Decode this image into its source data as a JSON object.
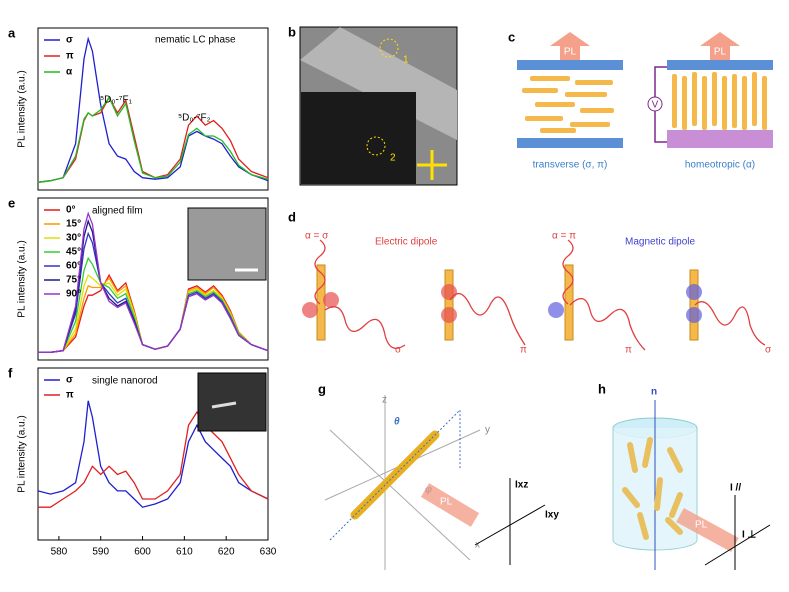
{
  "chart_data": [
    {
      "type": "line",
      "panel": "a",
      "ylabel": "PL intensity (a.u.)",
      "annotations": [
        "nematic LC phase",
        "⁵D₀-⁷F₁",
        "⁵D₀-⁷F₂"
      ],
      "xlim": [
        575,
        630
      ],
      "ylim": [
        0,
        1.05
      ],
      "x": [
        575,
        578,
        581,
        584,
        586,
        587,
        588,
        590,
        592,
        594,
        596,
        598,
        600,
        603,
        606,
        609,
        611,
        613,
        615,
        617,
        619,
        621,
        623,
        626,
        630
      ],
      "series": [
        {
          "name": "σ",
          "color": "#1f1fd0",
          "values": [
            0.05,
            0.06,
            0.08,
            0.3,
            0.85,
            0.98,
            0.9,
            0.55,
            0.3,
            0.22,
            0.2,
            0.12,
            0.08,
            0.07,
            0.08,
            0.15,
            0.35,
            0.38,
            0.35,
            0.33,
            0.3,
            0.22,
            0.15,
            0.1,
            0.06
          ]
        },
        {
          "name": "π",
          "color": "#e02020",
          "values": [
            0.05,
            0.06,
            0.08,
            0.2,
            0.45,
            0.5,
            0.48,
            0.5,
            0.6,
            0.5,
            0.58,
            0.35,
            0.12,
            0.08,
            0.1,
            0.2,
            0.42,
            0.48,
            0.42,
            0.45,
            0.4,
            0.32,
            0.2,
            0.12,
            0.08
          ]
        },
        {
          "name": "α",
          "color": "#22bb22",
          "values": [
            0.05,
            0.06,
            0.08,
            0.22,
            0.46,
            0.5,
            0.48,
            0.52,
            0.6,
            0.48,
            0.56,
            0.32,
            0.11,
            0.08,
            0.09,
            0.18,
            0.36,
            0.4,
            0.35,
            0.35,
            0.32,
            0.25,
            0.16,
            0.1,
            0.07
          ]
        }
      ]
    },
    {
      "type": "line",
      "panel": "e",
      "ylabel": "PL intensity (a.u.)",
      "annotations": [
        "aligned film"
      ],
      "xlim": [
        575,
        630
      ],
      "ylim": [
        0,
        1.05
      ],
      "x": [
        575,
        578,
        581,
        584,
        586,
        587,
        588,
        590,
        592,
        594,
        596,
        598,
        600,
        603,
        606,
        609,
        611,
        613,
        615,
        617,
        619,
        621,
        623,
        626,
        630
      ],
      "series": [
        {
          "name": "0°",
          "color": "#e41a1c",
          "values": [
            0.05,
            0.05,
            0.06,
            0.15,
            0.35,
            0.42,
            0.42,
            0.45,
            0.55,
            0.45,
            0.5,
            0.32,
            0.1,
            0.07,
            0.09,
            0.2,
            0.46,
            0.48,
            0.44,
            0.48,
            0.42,
            0.32,
            0.18,
            0.1,
            0.06
          ]
        },
        {
          "name": "15°",
          "color": "#ff9900",
          "values": [
            0.05,
            0.05,
            0.06,
            0.17,
            0.4,
            0.48,
            0.47,
            0.47,
            0.53,
            0.44,
            0.48,
            0.31,
            0.1,
            0.07,
            0.09,
            0.2,
            0.45,
            0.47,
            0.43,
            0.47,
            0.41,
            0.31,
            0.18,
            0.1,
            0.06
          ]
        },
        {
          "name": "30°",
          "color": "#e0e000",
          "values": [
            0.05,
            0.05,
            0.06,
            0.2,
            0.48,
            0.55,
            0.53,
            0.48,
            0.5,
            0.42,
            0.46,
            0.3,
            0.1,
            0.07,
            0.09,
            0.2,
            0.44,
            0.46,
            0.42,
            0.45,
            0.4,
            0.3,
            0.17,
            0.1,
            0.06
          ]
        },
        {
          "name": "45°",
          "color": "#33cc33",
          "values": [
            0.05,
            0.05,
            0.06,
            0.25,
            0.58,
            0.66,
            0.62,
            0.5,
            0.47,
            0.4,
            0.43,
            0.28,
            0.1,
            0.07,
            0.09,
            0.2,
            0.43,
            0.45,
            0.41,
            0.44,
            0.39,
            0.29,
            0.17,
            0.1,
            0.06
          ]
        },
        {
          "name": "60°",
          "color": "#3333cc",
          "values": [
            0.05,
            0.05,
            0.06,
            0.3,
            0.72,
            0.82,
            0.76,
            0.5,
            0.43,
            0.37,
            0.4,
            0.26,
            0.1,
            0.07,
            0.09,
            0.2,
            0.42,
            0.44,
            0.4,
            0.43,
            0.38,
            0.28,
            0.16,
            0.1,
            0.06
          ]
        },
        {
          "name": "75°",
          "color": "#1a1a80",
          "values": [
            0.05,
            0.05,
            0.06,
            0.33,
            0.8,
            0.9,
            0.83,
            0.5,
            0.4,
            0.35,
            0.38,
            0.25,
            0.1,
            0.07,
            0.09,
            0.2,
            0.41,
            0.43,
            0.39,
            0.42,
            0.37,
            0.27,
            0.16,
            0.1,
            0.06
          ]
        },
        {
          "name": "90°",
          "color": "#9933cc",
          "values": [
            0.05,
            0.05,
            0.06,
            0.35,
            0.85,
            0.95,
            0.88,
            0.5,
            0.38,
            0.34,
            0.37,
            0.24,
            0.1,
            0.07,
            0.09,
            0.2,
            0.41,
            0.43,
            0.39,
            0.42,
            0.37,
            0.27,
            0.16,
            0.1,
            0.06
          ]
        }
      ]
    },
    {
      "type": "line",
      "panel": "f",
      "ylabel": "PL intensity (a.u.)",
      "annotations": [
        "single nanorod"
      ],
      "xlim": [
        575,
        630
      ],
      "ylim": [
        0,
        1.05
      ],
      "xticks": [
        580,
        590,
        600,
        610,
        620,
        630
      ],
      "x": [
        575,
        578,
        581,
        584,
        586,
        587,
        588,
        590,
        592,
        594,
        596,
        598,
        600,
        603,
        606,
        609,
        611,
        613,
        615,
        617,
        619,
        621,
        623,
        626,
        630
      ],
      "series": [
        {
          "name": "σ",
          "color": "#1f1fd0",
          "values": [
            0.3,
            0.28,
            0.3,
            0.35,
            0.6,
            0.85,
            0.75,
            0.45,
            0.35,
            0.3,
            0.3,
            0.25,
            0.2,
            0.22,
            0.25,
            0.35,
            0.6,
            0.7,
            0.6,
            0.55,
            0.5,
            0.45,
            0.35,
            0.3,
            0.25
          ]
        },
        {
          "name": "π",
          "color": "#e02020",
          "values": [
            0.2,
            0.2,
            0.25,
            0.3,
            0.35,
            0.4,
            0.45,
            0.4,
            0.45,
            0.4,
            0.42,
            0.35,
            0.25,
            0.25,
            0.3,
            0.4,
            0.7,
            0.78,
            0.7,
            0.65,
            0.6,
            0.5,
            0.4,
            0.3,
            0.25
          ]
        }
      ]
    }
  ],
  "panels": {
    "b": {
      "label": "b",
      "spots": [
        "1",
        "2"
      ]
    },
    "c": {
      "label": "c",
      "pl_left": "PL",
      "pl_right": "PL",
      "voltage": "V",
      "left_caption": "transverse (σ, π)",
      "right_caption": "homeotropic (α)"
    },
    "d": {
      "label": "d",
      "left_angle": "α = σ",
      "left_title": "Electric dipole",
      "right_angle": "α = π",
      "right_title": "Magnetic dipole",
      "pol": [
        "σ",
        "π",
        "π",
        "σ"
      ]
    },
    "g": {
      "label": "g",
      "z": "z",
      "y": "y",
      "x": "x",
      "theta": "θ",
      "phi": "φ",
      "pl": "PL",
      "ixz": "Ixz",
      "ixy": "Ixy"
    },
    "h": {
      "label": "h",
      "n": "n",
      "pl": "PL",
      "ipar": "I //",
      "iperp": "I ⊥"
    }
  }
}
